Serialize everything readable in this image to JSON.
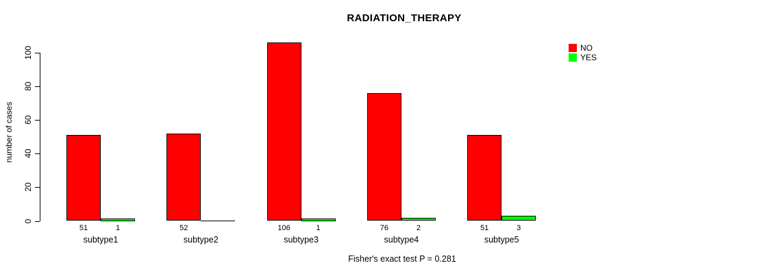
{
  "page": {
    "background": "#ffffff"
  },
  "chart_data": {
    "type": "bar",
    "title": "RADIATION_THERAPY",
    "xlabel": "",
    "ylabel": "number of cases",
    "categories": [
      "subtype1",
      "subtype2",
      "subtype3",
      "subtype4",
      "subtype5"
    ],
    "series": [
      {
        "name": "NO",
        "color": "#ff0000",
        "values": [
          51,
          52,
          106,
          76,
          51
        ],
        "bar_labels": [
          "51",
          "52",
          "106",
          "76",
          "51"
        ]
      },
      {
        "name": "YES",
        "color": "#00ff00",
        "values": [
          1,
          0,
          1,
          2,
          3
        ],
        "bar_labels": [
          "1",
          "",
          "1",
          "2",
          "3"
        ]
      }
    ],
    "ylim": [
      0,
      100
    ],
    "yticks": [
      0,
      20,
      40,
      60,
      80,
      100
    ],
    "grid": false,
    "legend_position": "top-right",
    "footnote": "Fisher's exact test P = 0.281"
  }
}
